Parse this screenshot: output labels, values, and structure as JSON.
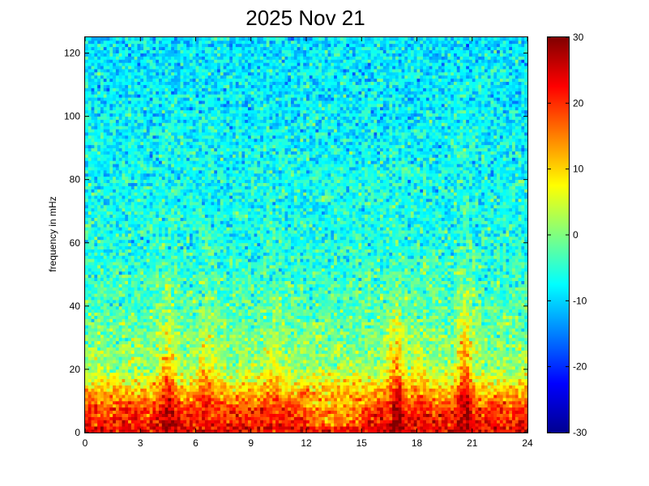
{
  "chart_data": {
    "type": "heatmap",
    "title": "2025 Nov 21",
    "xlabel": "",
    "ylabel": "frequency in mHz",
    "xlim": [
      0,
      24
    ],
    "ylim": [
      0,
      125
    ],
    "x_ticks": [
      0,
      3,
      6,
      9,
      12,
      15,
      18,
      21,
      24
    ],
    "y_ticks": [
      0,
      20,
      40,
      60,
      80,
      100,
      120
    ],
    "colorbar": {
      "colormap": "jet",
      "clim": [
        -30,
        30
      ],
      "ticks": [
        -30,
        -20,
        -10,
        0,
        10,
        20,
        30
      ]
    },
    "grid": false,
    "time_bins": 144,
    "freq_bins": 125,
    "low_frequency_band": {
      "freq_range": [
        2,
        8
      ],
      "level_db": 24
    },
    "background_level_db": {
      "at_20_mHz": 2,
      "at_40_mHz": -3,
      "at_60_mHz": -6,
      "at_120_mHz": -9
    },
    "bursts": [
      {
        "time_hour": 4.5,
        "peak_freq_mHz": 32,
        "level_db": 26
      },
      {
        "time_hour": 6.6,
        "peak_freq_mHz": 28,
        "level_db": 22
      },
      {
        "time_hour": 10.2,
        "peak_freq_mHz": 24,
        "level_db": 20
      },
      {
        "time_hour": 16.9,
        "peak_freq_mHz": 36,
        "level_db": 28
      },
      {
        "time_hour": 18.1,
        "peak_freq_mHz": 22,
        "level_db": 20
      },
      {
        "time_hour": 20.6,
        "peak_freq_mHz": 40,
        "level_db": 27
      }
    ],
    "quiet_band": {
      "time_range": [
        12,
        15
      ],
      "top_freq_mHz": 10
    }
  }
}
